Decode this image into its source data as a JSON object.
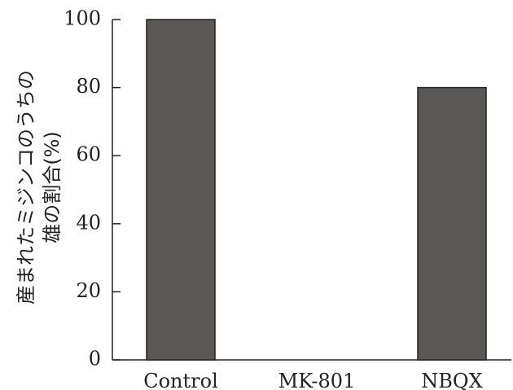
{
  "chart_data": {
    "type": "bar",
    "categories": [
      "Control",
      "MK-801",
      "NBQX"
    ],
    "values": [
      100,
      0,
      80
    ],
    "title": "",
    "xlabel": "",
    "ylabel_lines": [
      "産まれたミジンコのうちの",
      "雄の割合(%)"
    ],
    "ylim": [
      0,
      100
    ],
    "yticks": [
      0,
      20,
      40,
      60,
      80,
      100
    ],
    "grid": false,
    "colors": {
      "bar": "#595857",
      "axis": "#222222",
      "text": "#222222"
    }
  }
}
